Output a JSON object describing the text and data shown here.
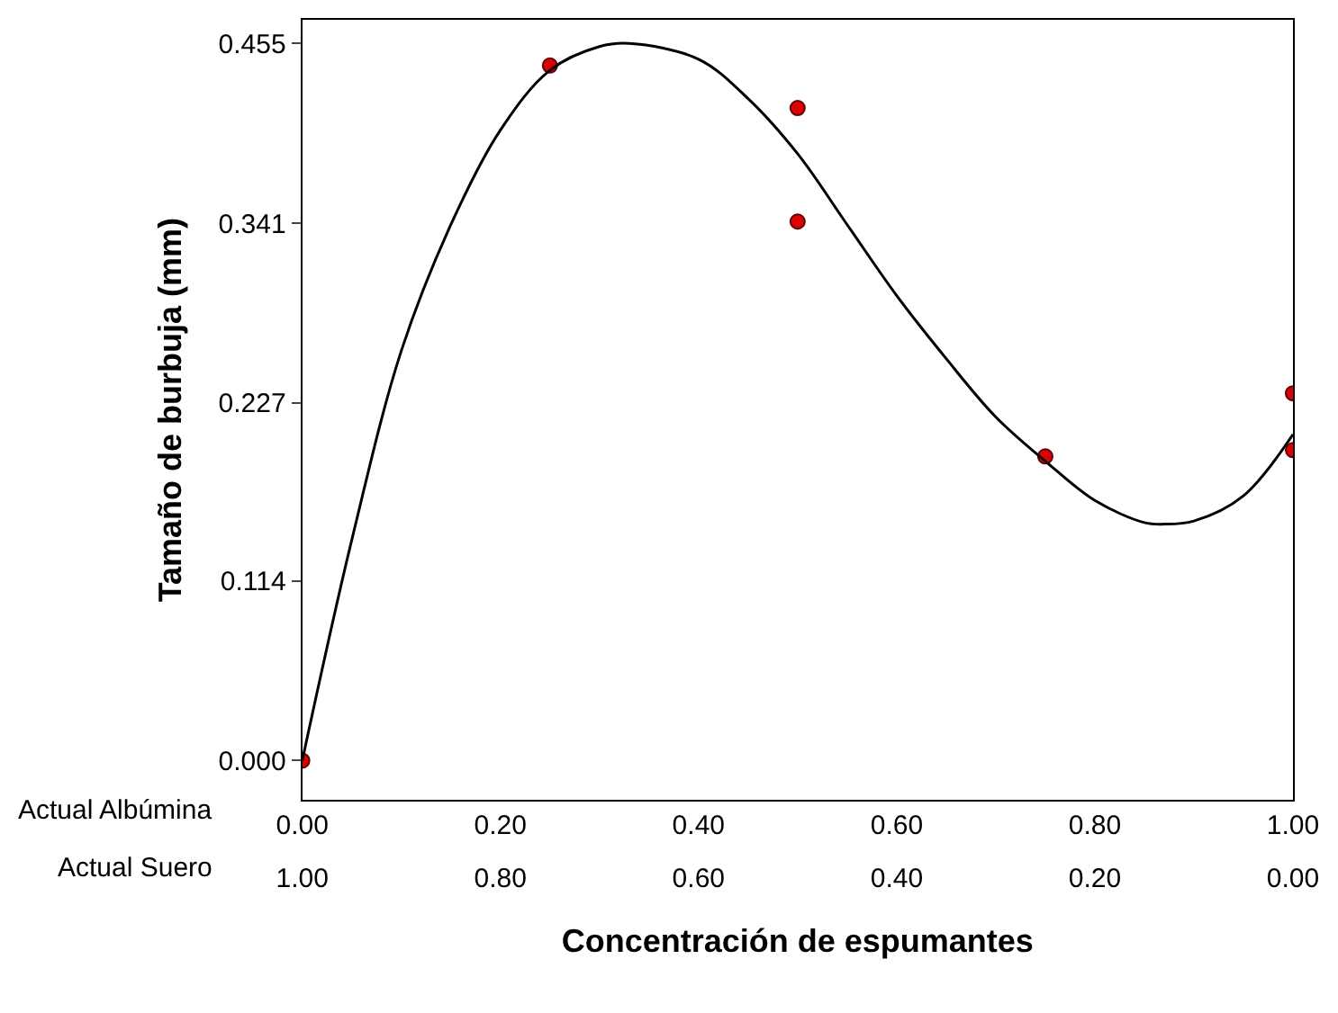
{
  "chart_data": {
    "type": "scatter",
    "xlabel": "Concentración de espumantes",
    "ylabel": "Tamaño de burbuja (mm)",
    "annotations": [
      "Actual Albúmina",
      "Actual Suero"
    ],
    "xlim": [
      0,
      1
    ],
    "xticks": [
      {
        "value": 0,
        "label": "0.00"
      },
      {
        "value": 0.2,
        "label": "0.20"
      },
      {
        "value": 0.4,
        "label": "0.40"
      },
      {
        "value": 0.6,
        "label": "0.60"
      },
      {
        "value": 0.8,
        "label": "0.80"
      },
      {
        "value": 1,
        "label": "1.00"
      }
    ],
    "x2lim": [
      1,
      0
    ],
    "x2ticks": [
      {
        "value": 1,
        "label": "1.00"
      },
      {
        "value": 0.8,
        "label": "0.80"
      },
      {
        "value": 0.6,
        "label": "0.60"
      },
      {
        "value": 0.4,
        "label": "0.40"
      },
      {
        "value": 0.2,
        "label": "0.20"
      },
      {
        "value": 0,
        "label": "0.00"
      }
    ],
    "ylim": [
      -0.025,
      0.47
    ],
    "yticks": [
      {
        "value": 0,
        "label": "0.000"
      },
      {
        "value": 0.114,
        "label": "0.114"
      },
      {
        "value": 0.227,
        "label": "0.227"
      },
      {
        "value": 0.341,
        "label": "0.341"
      },
      {
        "value": 0.455,
        "label": "0.455"
      }
    ],
    "legend": false,
    "series": [
      {
        "color": "#e00000",
        "marker": "circle",
        "x": [
          0,
          0.25,
          0.5,
          0.5,
          0.75,
          1,
          1
        ],
        "values": [
          0,
          0.441,
          0.414,
          0.342,
          0.193,
          0.233,
          0.197
        ]
      },
      {
        "type": "line",
        "color": "#000000",
        "line_style": "solid",
        "x": [
          0,
          0.05,
          0.1,
          0.15,
          0.2,
          0.25,
          0.3,
          0.33,
          0.4,
          0.45,
          0.5,
          0.55,
          0.6,
          0.65,
          0.7,
          0.75,
          0.8,
          0.85,
          0.87,
          0.9,
          0.95,
          1
        ],
        "values": [
          0,
          0.14,
          0.26,
          0.34,
          0.4,
          0.438,
          0.453,
          0.455,
          0.445,
          0.42,
          0.385,
          0.34,
          0.295,
          0.255,
          0.218,
          0.19,
          0.165,
          0.151,
          0.15,
          0.152,
          0.168,
          0.207
        ]
      }
    ]
  }
}
